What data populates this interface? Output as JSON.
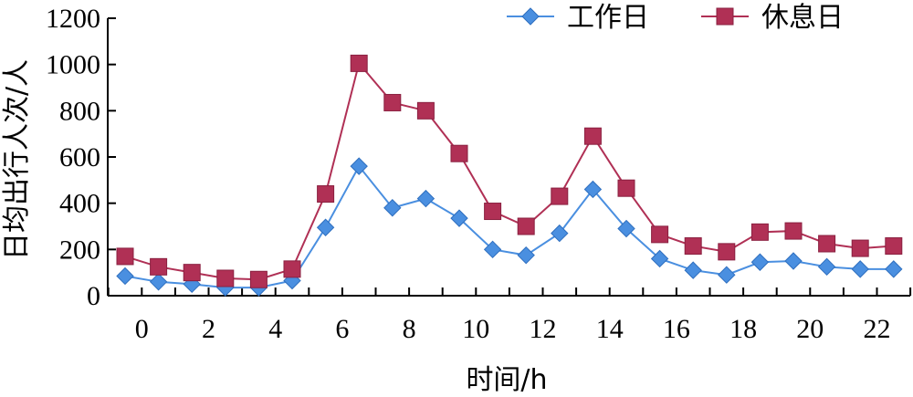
{
  "chart_data": {
    "type": "line",
    "xlabel": "时间/h",
    "ylabel": "日均出行人次/人",
    "ylim": [
      0,
      1200
    ],
    "yticks": [
      0,
      200,
      400,
      600,
      800,
      1000,
      1200
    ],
    "xticks": [
      0,
      2,
      4,
      6,
      8,
      10,
      12,
      14,
      16,
      18,
      20,
      22
    ],
    "x": [
      0,
      1,
      2,
      3,
      4,
      5,
      6,
      7,
      8,
      9,
      10,
      11,
      12,
      13,
      14,
      15,
      16,
      17,
      18,
      19,
      20,
      21,
      22,
      23
    ],
    "grid": false,
    "legend_position": "top-right",
    "series": [
      {
        "name": "工作日",
        "color": "#4a8fe0",
        "marker": "diamond",
        "values": [
          85,
          60,
          50,
          35,
          35,
          65,
          295,
          560,
          380,
          420,
          335,
          200,
          175,
          270,
          460,
          290,
          160,
          110,
          90,
          145,
          150,
          125,
          115,
          115
        ]
      },
      {
        "name": "休息日",
        "color": "#b03055",
        "marker": "square",
        "values": [
          170,
          125,
          100,
          75,
          70,
          115,
          440,
          1005,
          835,
          800,
          615,
          365,
          300,
          430,
          690,
          465,
          265,
          215,
          190,
          275,
          280,
          225,
          205,
          215
        ]
      }
    ]
  }
}
